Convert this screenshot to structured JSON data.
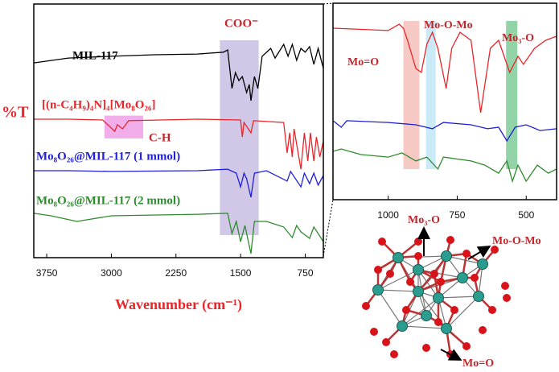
{
  "chart_data": [
    {
      "type": "line",
      "xlabel": "Wavenumber (cm⁻¹)",
      "ylabel": "%T",
      "xlim": [
        3900,
        540
      ],
      "ylim": [
        0,
        100
      ],
      "xticks": [
        3750,
        3000,
        2250,
        1500,
        750
      ],
      "bands": [
        {
          "label": "COO⁻",
          "range": [
            1740,
            1290
          ],
          "color": "#c9bde3"
        },
        {
          "label": "C-H",
          "range": [
            3080,
            2630
          ],
          "yrange": [
            56,
            47
          ],
          "color": "#f0a0e8"
        }
      ],
      "series": [
        {
          "name": "MIL-117",
          "color": "#000000",
          "x": [
            3900,
            3500,
            3000,
            2500,
            2000,
            1700,
            1650,
            1600,
            1560,
            1520,
            1480,
            1430,
            1400,
            1380,
            1340,
            1300,
            1250,
            1150,
            1100,
            1000,
            950,
            900,
            850,
            800,
            750,
            700,
            650,
            600,
            540
          ],
          "values": [
            76.8,
            78.7,
            79.4,
            80.0,
            80.3,
            81.0,
            81.9,
            66.7,
            73.0,
            69.8,
            71.4,
            65.1,
            68.3,
            61.9,
            71.4,
            66.7,
            79.4,
            82.5,
            78.7,
            84.1,
            79.4,
            84.1,
            77.8,
            82.5,
            81.0,
            83.2,
            76.2,
            82.5,
            74.6
          ]
        },
        {
          "name": "[(n-C₄H₉)₄N]₄[Mo₈O₂₆]",
          "color": "#e8262a",
          "x": [
            3900,
            3500,
            3100,
            2960,
            2930,
            2870,
            2800,
            2000,
            1500,
            1480,
            1460,
            1380,
            1350,
            1000,
            960,
            930,
            900,
            880,
            800,
            760,
            720,
            690,
            650,
            620,
            580,
            540
          ],
          "values": [
            54.6,
            54.6,
            54.3,
            49.8,
            52.4,
            50.8,
            54.0,
            54.6,
            54.3,
            47.6,
            53.3,
            49.2,
            54.0,
            53.3,
            41.3,
            49.2,
            39.7,
            50.8,
            34.9,
            49.2,
            38.1,
            49.2,
            38.1,
            47.6,
            39.7,
            46.0
          ]
        },
        {
          "name": "Mo₈O₂₆@MIL-117 (1 mmol)",
          "color": "#1f1fd6",
          "x": [
            3900,
            3500,
            3000,
            2000,
            1650,
            1550,
            1500,
            1460,
            1430,
            1380,
            1340,
            1200,
            960,
            920,
            800,
            760,
            700,
            650,
            600,
            540
          ],
          "values": [
            34.3,
            34.3,
            34.0,
            34.3,
            34.9,
            33.3,
            27.9,
            33.3,
            31.1,
            23.8,
            33.3,
            34.3,
            30.2,
            34.0,
            27.9,
            33.3,
            29.2,
            33.3,
            28.6,
            32.4
          ]
        },
        {
          "name": "Mo₈O₂₆@MIL-117 (2 mmol)",
          "color": "#2e8b2e",
          "x": [
            3900,
            3700,
            3400,
            3000,
            2000,
            1650,
            1600,
            1550,
            1500,
            1450,
            1380,
            1340,
            1200,
            1000,
            900,
            850,
            800,
            700,
            650,
            600,
            540
          ],
          "values": [
            17.5,
            16.5,
            14.3,
            16.5,
            17.1,
            17.5,
            9.5,
            14.3,
            6.3,
            12.7,
            1.6,
            14.3,
            14.3,
            12.1,
            7.9,
            12.7,
            10.2,
            7.6,
            12.1,
            9.5,
            6.3
          ]
        }
      ]
    },
    {
      "type": "line",
      "xlim": [
        1200,
        390
      ],
      "ylim": [
        0,
        100
      ],
      "xticks": [
        1000,
        750,
        500
      ],
      "bands": [
        {
          "label": "Mo=O",
          "range": [
            945,
            887
          ],
          "color": "#f6c0ba"
        },
        {
          "label": "Mo-O-Mo",
          "range": [
            863,
            828
          ],
          "color": "#bfe6f5"
        },
        {
          "label": "Mo₃-O",
          "range": [
            573,
            532
          ],
          "color": "#7fcb98"
        }
      ],
      "series": [
        {
          "color": "#e8262a",
          "x": [
            1200,
            1000,
            960,
            945,
            930,
            900,
            880,
            860,
            840,
            820,
            790,
            770,
            740,
            700,
            665,
            630,
            600,
            560,
            530,
            510,
            470,
            430,
            390
          ],
          "values": [
            87.3,
            86.1,
            89.3,
            87.3,
            81.1,
            66.8,
            64.8,
            79.1,
            85.2,
            77.0,
            56.6,
            77.0,
            85.2,
            81.1,
            44.3,
            77.0,
            81.1,
            64.8,
            73.0,
            68.9,
            77.0,
            81.1,
            83.2
          ]
        },
        {
          "color": "#1f1fd6",
          "x": [
            1200,
            1170,
            1150,
            1000,
            900,
            840,
            800,
            700,
            640,
            600,
            570,
            540,
            500,
            450,
            390
          ],
          "values": [
            40.2,
            36.9,
            40.2,
            39.3,
            38.1,
            36.1,
            39.3,
            38.1,
            36.1,
            36.9,
            29.9,
            36.9,
            38.1,
            35.2,
            36.1
          ]
        },
        {
          "color": "#2e8b2e",
          "x": [
            1200,
            1170,
            1100,
            1000,
            950,
            900,
            860,
            820,
            800,
            700,
            650,
            600,
            570,
            550,
            530,
            500,
            460,
            420,
            390
          ],
          "values": [
            24.6,
            25.8,
            23.0,
            21.7,
            23.8,
            19.7,
            21.7,
            15.6,
            21.7,
            19.7,
            17.6,
            13.5,
            19.7,
            9.4,
            17.6,
            9.4,
            17.6,
            13.5,
            15.6
          ]
        }
      ]
    }
  ],
  "structure_labels": [
    "Mo₃-O",
    "Mo-O-Mo",
    "Mo=O"
  ]
}
